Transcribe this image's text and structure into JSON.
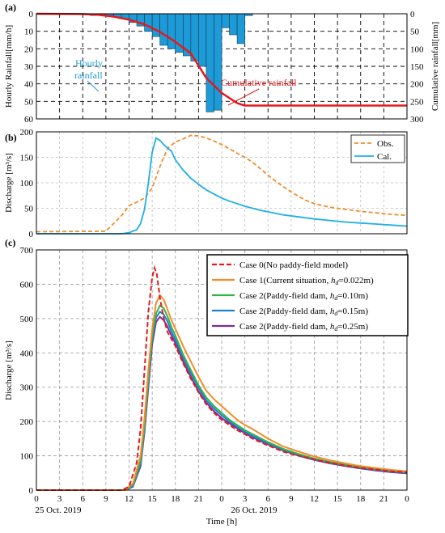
{
  "chart_data": [
    {
      "panel_label": "(a)",
      "type": "bar",
      "ylabel_left": "Hourly Rainfall[mm/h]",
      "ylabel_right": "Cumulative rainfall[mm]",
      "ylim_left": [
        60,
        0
      ],
      "ylim_right": [
        300,
        0
      ],
      "left_ticks": [
        "0",
        "10",
        "20",
        "30",
        "40",
        "50",
        "60"
      ],
      "right_ticks": [
        "0",
        "50",
        "100",
        "150",
        "200",
        "250",
        "300"
      ],
      "x_hours_from_start": [
        0,
        1,
        2,
        3,
        4,
        5,
        6,
        7,
        8,
        9,
        10,
        11,
        12,
        13,
        14,
        15,
        16,
        17,
        18,
        19,
        20,
        21,
        22,
        23,
        24,
        25,
        26,
        27,
        28,
        29,
        30,
        31,
        32,
        33,
        34,
        35,
        36,
        37,
        38,
        39,
        40,
        41,
        42,
        43,
        44,
        45,
        46,
        47,
        48
      ],
      "hourly_rainfall": [
        0,
        0,
        0,
        0,
        0,
        0,
        0.5,
        1,
        1,
        1,
        2,
        3,
        5,
        7,
        10,
        13,
        18,
        20,
        22,
        24,
        27,
        30,
        56,
        55,
        8,
        12,
        17,
        1,
        0,
        0,
        0,
        0,
        0,
        0,
        0,
        0,
        0,
        0,
        0,
        0,
        0,
        0,
        0,
        0,
        0,
        0,
        0,
        0,
        0
      ],
      "cumulative_rainfall_x": [
        0,
        6,
        8,
        10,
        12,
        14,
        16,
        18,
        20,
        22,
        24,
        26,
        27,
        30,
        48
      ],
      "cumulative_rainfall": [
        0,
        1,
        3,
        8,
        17,
        30,
        52,
        80,
        113,
        183,
        226,
        255,
        262,
        262,
        262
      ],
      "annotations": {
        "hourly": [
          "Hourly",
          "rainfall"
        ],
        "cumulative": "Cumulative rainfall"
      },
      "colors": {
        "bars": "#1E9BD7",
        "cumulative": "#E41A1C"
      }
    },
    {
      "panel_label": "(b)",
      "type": "line",
      "ylabel": "Discharge [m³/s]",
      "ylim": [
        0,
        200
      ],
      "y_ticks": [
        "0",
        "50",
        "100",
        "150",
        "200"
      ],
      "legend": [
        "Obs.",
        "Cal."
      ],
      "series": [
        {
          "name": "Obs.",
          "color": "#F28C28",
          "dash": true,
          "x": [
            0,
            9,
            10,
            11,
            12,
            13,
            14,
            15,
            16,
            17,
            18,
            19,
            20,
            21,
            22,
            23,
            24,
            25,
            26,
            27,
            28,
            29,
            30,
            31,
            32,
            33,
            34,
            35,
            36,
            38,
            40,
            42,
            44,
            46,
            48
          ],
          "y": [
            4,
            5,
            20,
            35,
            55,
            62,
            70,
            90,
            132,
            168,
            180,
            186,
            193,
            192,
            188,
            182,
            175,
            167,
            158,
            150,
            140,
            128,
            115,
            103,
            92,
            82,
            73,
            65,
            59,
            52,
            48,
            44,
            41,
            38,
            36
          ]
        },
        {
          "name": "Cal.",
          "color": "#1EAFE5",
          "dash": false,
          "x": [
            0,
            11,
            12,
            13,
            13.5,
            14,
            14.5,
            15,
            15.5,
            16,
            16.5,
            17,
            17.5,
            18,
            19,
            20,
            21,
            22,
            23,
            24,
            25,
            26,
            27,
            28,
            29,
            30,
            32,
            34,
            36,
            38,
            40,
            42,
            44,
            46,
            48
          ],
          "y": [
            0,
            0,
            2,
            8,
            20,
            48,
            100,
            160,
            188,
            183,
            175,
            168,
            162,
            145,
            125,
            109,
            97,
            86,
            78,
            70,
            64,
            59,
            54,
            50,
            46,
            43,
            37,
            33,
            29,
            26,
            23,
            21,
            19,
            17,
            15
          ]
        }
      ]
    },
    {
      "panel_label": "(c)",
      "type": "line",
      "ylabel": "Discharge [m³/s]",
      "xlabel": "Time [h]",
      "ylim": [
        0,
        700
      ],
      "y_ticks": [
        "0",
        "100",
        "200",
        "300",
        "400",
        "500",
        "600",
        "700"
      ],
      "x_ticks": [
        "0",
        "3",
        "6",
        "9",
        "12",
        "15",
        "18",
        "21",
        "0",
        "3",
        "6",
        "9",
        "12",
        "15",
        "18",
        "21",
        "0"
      ],
      "date_labels": [
        "25 Oct. 2019",
        "26 Oct. 2019"
      ],
      "series": [
        {
          "name": "Case 0(No paddy-field model)",
          "color": "#E41A1C",
          "dash": true,
          "x": [
            0,
            11,
            12,
            13,
            13.5,
            14,
            14.5,
            15,
            15.3,
            15.6,
            16,
            16.5,
            17,
            17.5,
            18,
            19,
            20,
            21,
            22,
            23,
            24,
            25,
            26,
            27,
            28,
            30,
            32,
            34,
            36,
            38,
            40,
            42,
            44,
            46,
            48
          ],
          "y": [
            0,
            0,
            10,
            80,
            180,
            350,
            520,
            620,
            648,
            630,
            560,
            500,
            460,
            440,
            420,
            370,
            325,
            285,
            250,
            225,
            205,
            190,
            175,
            163,
            150,
            130,
            112,
            100,
            90,
            80,
            72,
            65,
            60,
            55,
            52
          ]
        },
        {
          "name": "Case 1(Current situation, ",
          "name_sub": "h",
          "name_sub2": "d",
          "name_tail": "=0.022m)",
          "color": "#F28C28",
          "dash": false,
          "x": [
            0,
            11.5,
            12.5,
            13.5,
            14,
            14.5,
            15,
            15.5,
            16,
            16.5,
            17,
            17.5,
            18,
            19,
            20,
            21,
            22,
            23,
            24,
            25,
            26,
            27,
            28,
            30,
            32,
            34,
            36,
            38,
            40,
            42,
            44,
            46,
            48
          ],
          "y": [
            0,
            0,
            20,
            100,
            210,
            350,
            470,
            545,
            568,
            555,
            525,
            495,
            470,
            420,
            375,
            330,
            290,
            265,
            245,
            225,
            205,
            190,
            178,
            150,
            127,
            112,
            98,
            87,
            78,
            70,
            64,
            59,
            55
          ]
        },
        {
          "name": "Case 2(Paddy-field dam, ",
          "name_sub": "h",
          "name_sub2": "d",
          "name_tail": "=0.10m)",
          "color": "#33B24A",
          "dash": false,
          "x": [
            0,
            11.5,
            12.5,
            13.5,
            14,
            14.5,
            15,
            15.5,
            16,
            16.5,
            17,
            17.5,
            18,
            19,
            20,
            21,
            22,
            23,
            24,
            25,
            26,
            27,
            28,
            30,
            32,
            34,
            36,
            38,
            40,
            42,
            44,
            46,
            48
          ],
          "y": [
            0,
            0,
            15,
            85,
            190,
            330,
            450,
            515,
            538,
            530,
            505,
            475,
            450,
            395,
            350,
            305,
            270,
            245,
            225,
            205,
            190,
            175,
            163,
            140,
            120,
            105,
            92,
            82,
            74,
            67,
            61,
            56,
            52
          ]
        },
        {
          "name": "Case 2(Paddy-field dam, ",
          "name_sub": "h",
          "name_sub2": "d",
          "name_tail": "=0.15m)",
          "color": "#1E82C8",
          "dash": false,
          "x": [
            0,
            11.5,
            12.5,
            13.5,
            14,
            14.5,
            15,
            15.5,
            16,
            16.5,
            17,
            17.5,
            18,
            19,
            20,
            21,
            22,
            23,
            24,
            25,
            26,
            27,
            28,
            30,
            32,
            34,
            36,
            38,
            40,
            42,
            44,
            46,
            48
          ],
          "y": [
            0,
            0,
            12,
            78,
            180,
            315,
            440,
            503,
            520,
            512,
            490,
            462,
            438,
            385,
            340,
            298,
            262,
            238,
            218,
            200,
            184,
            170,
            158,
            136,
            117,
            103,
            90,
            80,
            72,
            65,
            59,
            54,
            51
          ]
        },
        {
          "name": "Case 2(Paddy-field dam, ",
          "name_sub": "h",
          "name_sub2": "d",
          "name_tail": "=0.25m)",
          "color": "#7B2F9E",
          "dash": false,
          "x": [
            0,
            11.5,
            12.5,
            13.5,
            14,
            14.5,
            15,
            15.5,
            16,
            16.5,
            17,
            17.5,
            18,
            19,
            20,
            21,
            22,
            23,
            24,
            25,
            26,
            27,
            28,
            30,
            32,
            34,
            36,
            38,
            40,
            42,
            44,
            46,
            48
          ],
          "y": [
            0,
            0,
            10,
            70,
            170,
            300,
            425,
            490,
            505,
            495,
            475,
            450,
            428,
            375,
            330,
            288,
            255,
            230,
            210,
            195,
            180,
            166,
            154,
            133,
            115,
            100,
            88,
            78,
            70,
            63,
            57,
            52,
            49
          ]
        }
      ]
    }
  ]
}
